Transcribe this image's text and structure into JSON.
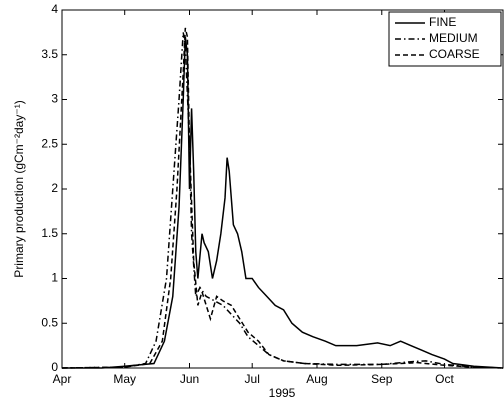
{
  "chart_data": {
    "type": "line",
    "xlabel": "1995",
    "ylabel": "Primary production (gCm⁻²day⁻¹)",
    "xlim": [
      91,
      302
    ],
    "xticks": [
      {
        "value": 91,
        "label": "Apr"
      },
      {
        "value": 121,
        "label": "May"
      },
      {
        "value": 152,
        "label": "Jun"
      },
      {
        "value": 182,
        "label": "Jul"
      },
      {
        "value": 213,
        "label": "Aug"
      },
      {
        "value": 244,
        "label": "Sep"
      },
      {
        "value": 274,
        "label": "Oct"
      }
    ],
    "ylim": [
      0,
      4
    ],
    "yticks": [
      0,
      0.5,
      1,
      1.5,
      2,
      2.5,
      3,
      3.5,
      4
    ],
    "grid": false,
    "legend": "upper right",
    "series": [
      {
        "name": "FINE",
        "color": "#000000",
        "dash": "none",
        "x": [
          91,
          110,
          121,
          135,
          140,
          144,
          147,
          149,
          150,
          151,
          152,
          153,
          154,
          155,
          156,
          158,
          159,
          161,
          163,
          165,
          167,
          169,
          170,
          171,
          173,
          175,
          177,
          179,
          182,
          185,
          189,
          193,
          197,
          201,
          206,
          211,
          217,
          222,
          232,
          242,
          248,
          253,
          258,
          263,
          268,
          274,
          278,
          288,
          302
        ],
        "values": [
          0,
          0,
          0.02,
          0.05,
          0.3,
          0.8,
          1.8,
          3.0,
          3.7,
          3.5,
          2.0,
          2.9,
          2.2,
          1.3,
          1.0,
          1.5,
          1.4,
          1.3,
          1.0,
          1.2,
          1.5,
          1.9,
          2.35,
          2.2,
          1.6,
          1.5,
          1.3,
          1.0,
          1.0,
          0.9,
          0.8,
          0.7,
          0.65,
          0.5,
          0.4,
          0.35,
          0.3,
          0.25,
          0.25,
          0.28,
          0.25,
          0.3,
          0.25,
          0.2,
          0.15,
          0.1,
          0.05,
          0.02,
          0
        ]
      },
      {
        "name": "MEDIUM",
        "color": "#000000",
        "dash": "6,3,1.5,3",
        "x": [
          91,
          121,
          131,
          136,
          141,
          144,
          147,
          149,
          150,
          152,
          153,
          155,
          157,
          160,
          164,
          168,
          172,
          176,
          180,
          185,
          190,
          197,
          207,
          223,
          244,
          258,
          265,
          274,
          288,
          302
        ],
        "values": [
          0,
          0.01,
          0.05,
          0.3,
          1.0,
          2.0,
          3.0,
          3.75,
          3.6,
          2.5,
          1.5,
          0.8,
          0.9,
          0.8,
          0.75,
          0.7,
          0.6,
          0.5,
          0.35,
          0.25,
          0.15,
          0.08,
          0.05,
          0.04,
          0.04,
          0.07,
          0.08,
          0.04,
          0.01,
          0
        ]
      },
      {
        "name": "COARSE",
        "color": "#000000",
        "dash": "5,3",
        "x": [
          91,
          121,
          133,
          139,
          143,
          146,
          149,
          150,
          151,
          152,
          154,
          156,
          158,
          160,
          162,
          165,
          168,
          172,
          176,
          180,
          185,
          190,
          197,
          207,
          223,
          244,
          261,
          274,
          288,
          302
        ],
        "values": [
          0,
          0.01,
          0.05,
          0.3,
          1.0,
          2.0,
          3.3,
          3.8,
          3.7,
          2.5,
          1.2,
          0.7,
          0.85,
          0.7,
          0.55,
          0.8,
          0.75,
          0.7,
          0.55,
          0.4,
          0.3,
          0.15,
          0.08,
          0.05,
          0.03,
          0.04,
          0.06,
          0.03,
          0.01,
          0
        ]
      }
    ]
  }
}
